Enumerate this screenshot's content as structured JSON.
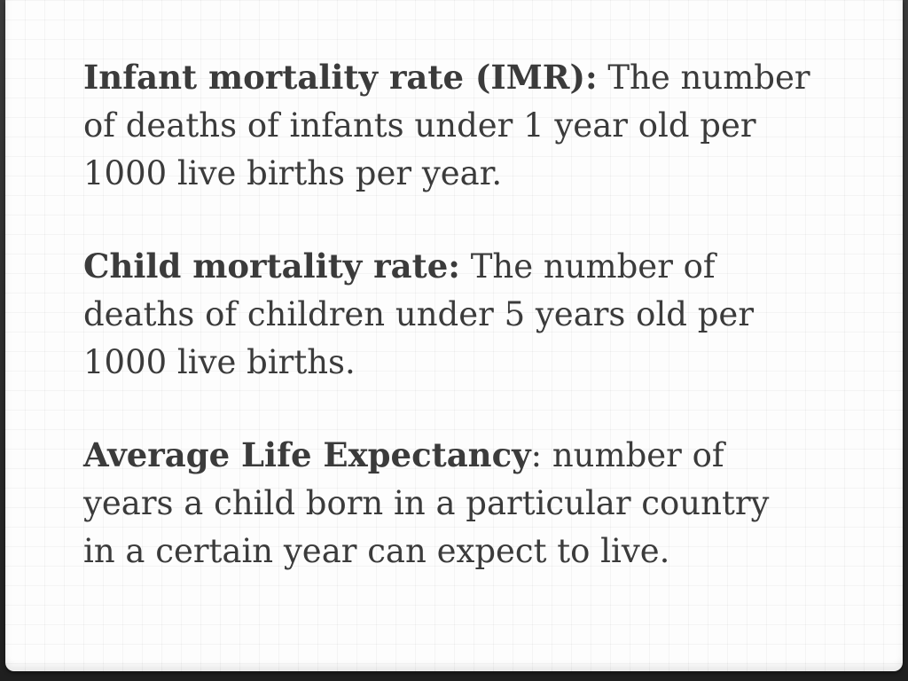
{
  "definitions": [
    {
      "term": "Infant mortality rate (IMR):",
      "separator": "",
      "definition": " The number of deaths of infants under 1 year old per 1000 live births per year."
    },
    {
      "term": "Child mortality rate:",
      "separator": "",
      "definition": " The number of deaths of children under 5 years old per 1000 live births."
    },
    {
      "term": "Average Life Expectancy",
      "separator": ":",
      "definition": " number of years a child born in a particular country in a certain year can expect to live."
    }
  ]
}
